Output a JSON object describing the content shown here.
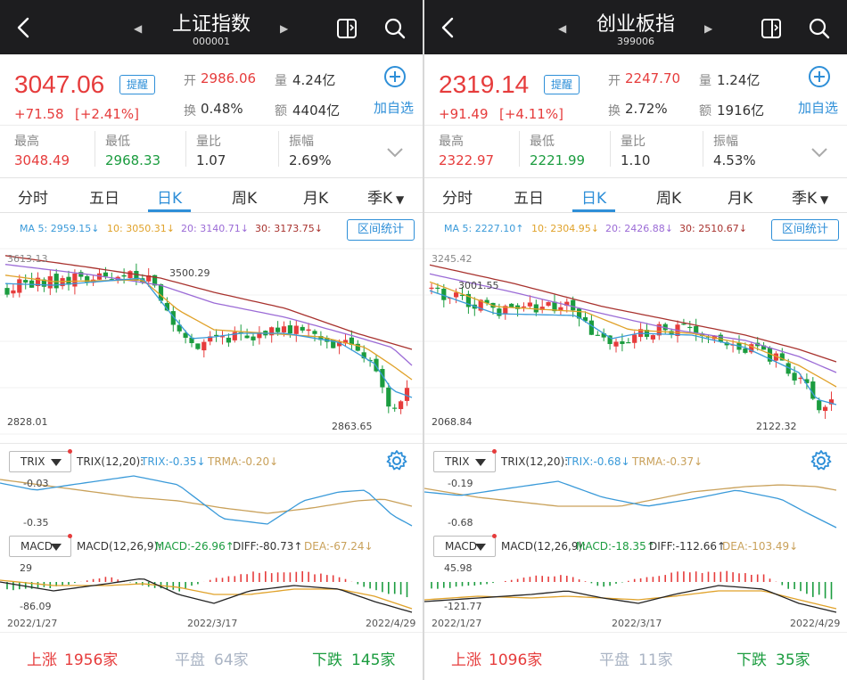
{
  "panels": [
    {
      "title": "上证指数",
      "code": "000001",
      "price": "3047.06",
      "remind": "提醒",
      "change": "+71.58",
      "change_pct": "[+2.41%]",
      "open_label": "开",
      "open": "2986.06",
      "volume_label": "量",
      "volume": "4.24亿",
      "turnover_label": "换",
      "turnover": "0.48%",
      "amount_label": "额",
      "amount": "4404亿",
      "add_watch": "加自选",
      "high_label": "最高",
      "high": "3048.49",
      "low_label": "最低",
      "low": "2968.33",
      "vol_ratio_label": "量比",
      "vol_ratio": "1.07",
      "amplitude_label": "振幅",
      "amplitude": "2.69%",
      "tabs": [
        "分时",
        "五日",
        "日K",
        "周K",
        "月K",
        "季K"
      ],
      "active_tab": 2,
      "ma": {
        "ma5": "MA 5: 2959.15↓",
        "ma10": "10: 3050.31↓",
        "ma20": "20: 3140.71↓",
        "ma30": "30: 3173.75↓"
      },
      "range_stat": "区间统计",
      "kline": {
        "top_label": "3613.13",
        "bottom_label": "2828.01",
        "max_label": "3500.29",
        "min_label": "2863.65"
      },
      "trix": {
        "selector": "TRIX",
        "param": "TRIX(12,20):",
        "trix": "TRIX:-0.35↓",
        "trma": "TRMA:-0.20↓",
        "top": "-0.03",
        "bottom": "-0.35"
      },
      "macd": {
        "selector": "MACD",
        "param": "MACD(12,26,9):",
        "macd": "MACD:-26.96↑",
        "diff": "DIFF:-80.73↑",
        "dea": "DEA:-67.24↓",
        "top": "29",
        "bottom": "-86.09"
      },
      "dates": [
        "2022/1/27",
        "2022/3/17",
        "2022/4/29"
      ],
      "stats": {
        "up_label": "上涨",
        "up": "1956家",
        "flat_label": "平盘",
        "flat": "64家",
        "down_label": "下跌",
        "down": "145家"
      }
    },
    {
      "title": "创业板指",
      "code": "399006",
      "price": "2319.14",
      "remind": "提醒",
      "change": "+91.49",
      "change_pct": "[+4.11%]",
      "open_label": "开",
      "open": "2247.70",
      "volume_label": "量",
      "volume": "1.24亿",
      "turnover_label": "换",
      "turnover": "2.72%",
      "amount_label": "额",
      "amount": "1916亿",
      "add_watch": "加自选",
      "high_label": "最高",
      "high": "2322.97",
      "low_label": "最低",
      "low": "2221.99",
      "vol_ratio_label": "量比",
      "vol_ratio": "1.10",
      "amplitude_label": "振幅",
      "amplitude": "4.53%",
      "tabs": [
        "分时",
        "五日",
        "日K",
        "周K",
        "月K",
        "季K"
      ],
      "active_tab": 2,
      "ma": {
        "ma5": "MA 5: 2227.10↑",
        "ma10": "10: 2304.95↓",
        "ma20": "20: 2426.88↓",
        "ma30": "30: 2510.67↓"
      },
      "range_stat": "区间统计",
      "kline": {
        "top_label": "3245.42",
        "bottom_label": "2068.84",
        "max_label": "3001.55",
        "min_label": "2122.32"
      },
      "trix": {
        "selector": "TRIX",
        "param": "TRIX(12,20):",
        "trix": "TRIX:-0.68↓",
        "trma": "TRMA:-0.37↓",
        "top": "-0.19",
        "bottom": "-0.68"
      },
      "macd": {
        "selector": "MACD",
        "param": "MACD(12,26,9):",
        "macd": "MACD:-18.35↑",
        "diff": "DIFF:-112.66↑",
        "dea": "DEA:-103.49↓",
        "top": "45.98",
        "bottom": "-121.77"
      },
      "dates": [
        "2022/1/27",
        "2022/3/17",
        "2022/4/29"
      ],
      "stats": {
        "up_label": "上涨",
        "up": "1096家",
        "flat_label": "平盘",
        "flat": "11家",
        "down_label": "下跌",
        "down": "35家"
      }
    }
  ],
  "colors": {
    "up": "#e63c3c",
    "down": "#1b9c3f",
    "accent": "#2e8fd8",
    "ma5": "#3a9ad9",
    "ma10": "#e0a22a",
    "ma20": "#9b6bd6",
    "ma30": "#a8322e",
    "trix": "#3a9ad9",
    "trma": "#c9a15a",
    "flat": "#aab4c4"
  },
  "icons": [
    "back-icon",
    "prev-icon",
    "next-icon",
    "split-screen-icon",
    "search-icon",
    "add-watch-icon",
    "expand-icon",
    "settings-icon"
  ]
}
